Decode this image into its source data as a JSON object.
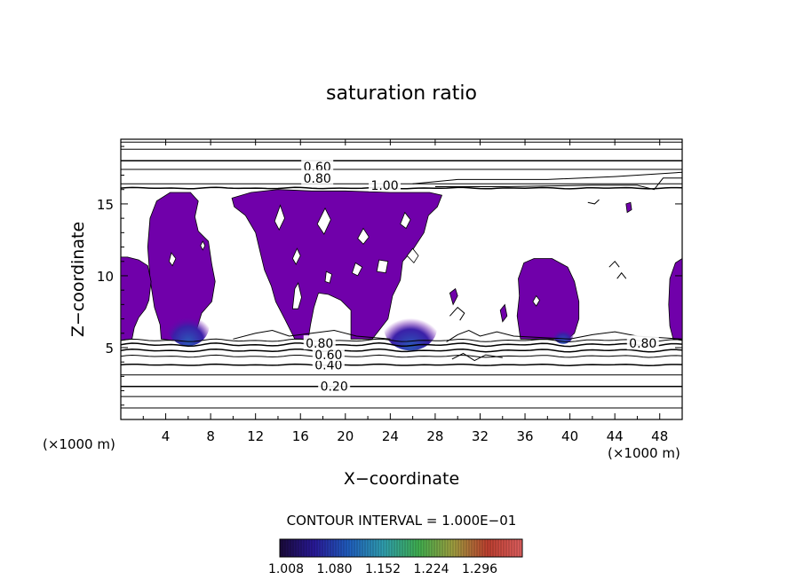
{
  "chart_data": {
    "type": "contour",
    "title": "saturation ratio",
    "xlabel": "X−coordinate",
    "ylabel": "Z−coordinate",
    "x_unit_left": "(×1000 m)",
    "x_unit_right": "(×1000 m)",
    "xlim": [
      0,
      50
    ],
    "ylim": [
      0,
      19.5
    ],
    "x_ticks": [
      4,
      8,
      12,
      16,
      20,
      24,
      28,
      32,
      36,
      40,
      44,
      48
    ],
    "y_ticks": [
      5,
      10,
      15
    ],
    "contour_levels": [
      {
        "label": "0.20",
        "value": 0.2,
        "x": 19,
        "y": 2.3
      },
      {
        "label": "0.40",
        "value": 0.4,
        "x": 18.5,
        "y": 3.8
      },
      {
        "label": "0.60",
        "value": 0.6,
        "x": 18.5,
        "y": 4.5
      },
      {
        "label": "0.80",
        "value": 0.8,
        "x": 17.7,
        "y": 5.3
      },
      {
        "label": "0.80",
        "value": 0.8,
        "x": 46.5,
        "y": 5.3
      },
      {
        "label": "0.60",
        "value": 0.6,
        "x": 17.5,
        "y": 17.6
      },
      {
        "label": "0.80",
        "value": 0.8,
        "x": 17.5,
        "y": 16.8
      },
      {
        "label": "1.00",
        "value": 1.0,
        "x": 23.5,
        "y": 16.3
      }
    ],
    "contour_interval_text": "CONTOUR INTERVAL = 1.000E−01",
    "colorbar": {
      "ticks": [
        "1.008",
        "1.080",
        "1.152",
        "1.224",
        "1.296"
      ],
      "colors": [
        "#1a0a3a",
        "#2a1a9a",
        "#2060c0",
        "#30a0b0",
        "#40b050",
        "#a0a040",
        "#c04030",
        "#e06060"
      ]
    },
    "fill_color": "#7000aa"
  }
}
